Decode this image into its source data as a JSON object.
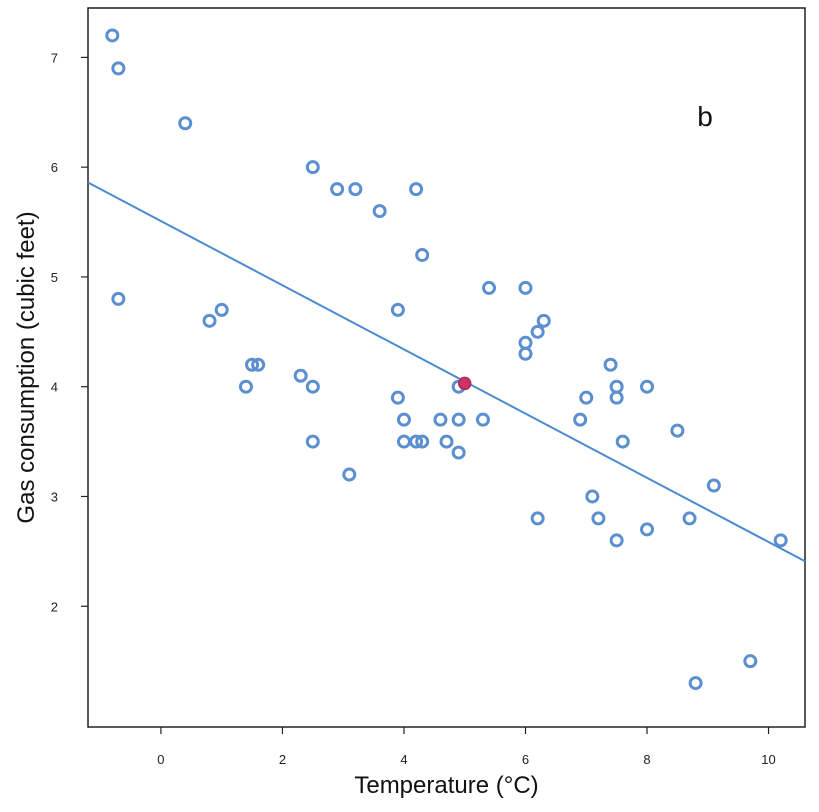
{
  "chart_data": {
    "type": "scatter",
    "title": "",
    "annotation": "b",
    "xlabel": "Temperature (°C)",
    "ylabel": "Gas consumption (cubic feet)",
    "xlim": [
      -1.2,
      10.6
    ],
    "ylim": [
      0.9,
      7.45
    ],
    "xticks": [
      0,
      2,
      4,
      6,
      8,
      10
    ],
    "yticks": [
      2,
      3,
      4,
      5,
      6,
      7
    ],
    "grid": false,
    "legend": "none",
    "point_color": "#5b8fd0",
    "line_color": "#4a8bd0",
    "highlight_color": "#cc3366",
    "points": [
      {
        "x": -0.8,
        "y": 7.2
      },
      {
        "x": -0.7,
        "y": 6.9
      },
      {
        "x": 0.4,
        "y": 6.4
      },
      {
        "x": -0.7,
        "y": 4.8
      },
      {
        "x": 0.8,
        "y": 4.6
      },
      {
        "x": 1.0,
        "y": 4.7
      },
      {
        "x": 1.4,
        "y": 4.0
      },
      {
        "x": 1.5,
        "y": 4.2
      },
      {
        "x": 1.6,
        "y": 4.2
      },
      {
        "x": 2.3,
        "y": 4.1
      },
      {
        "x": 2.5,
        "y": 4.0
      },
      {
        "x": 2.5,
        "y": 3.5
      },
      {
        "x": 2.5,
        "y": 6.0
      },
      {
        "x": 2.9,
        "y": 5.8
      },
      {
        "x": 3.2,
        "y": 5.8
      },
      {
        "x": 3.1,
        "y": 3.2
      },
      {
        "x": 3.6,
        "y": 5.6
      },
      {
        "x": 3.9,
        "y": 4.7
      },
      {
        "x": 3.9,
        "y": 3.9
      },
      {
        "x": 4.0,
        "y": 3.7
      },
      {
        "x": 4.0,
        "y": 3.5
      },
      {
        "x": 4.2,
        "y": 3.5
      },
      {
        "x": 4.2,
        "y": 5.8
      },
      {
        "x": 4.3,
        "y": 5.2
      },
      {
        "x": 4.3,
        "y": 3.5
      },
      {
        "x": 4.6,
        "y": 3.7
      },
      {
        "x": 4.7,
        "y": 3.5
      },
      {
        "x": 4.9,
        "y": 3.7
      },
      {
        "x": 4.9,
        "y": 3.4
      },
      {
        "x": 4.9,
        "y": 4.0
      },
      {
        "x": 5.3,
        "y": 3.7
      },
      {
        "x": 5.4,
        "y": 4.9
      },
      {
        "x": 6.0,
        "y": 4.9
      },
      {
        "x": 6.0,
        "y": 4.4
      },
      {
        "x": 6.0,
        "y": 4.3
      },
      {
        "x": 6.2,
        "y": 4.5
      },
      {
        "x": 6.3,
        "y": 4.6
      },
      {
        "x": 6.2,
        "y": 2.8
      },
      {
        "x": 6.9,
        "y": 3.7
      },
      {
        "x": 7.0,
        "y": 3.9
      },
      {
        "x": 7.1,
        "y": 3.0
      },
      {
        "x": 7.2,
        "y": 2.8
      },
      {
        "x": 7.4,
        "y": 4.2
      },
      {
        "x": 7.5,
        "y": 4.0
      },
      {
        "x": 7.5,
        "y": 3.9
      },
      {
        "x": 7.5,
        "y": 2.6
      },
      {
        "x": 7.6,
        "y": 3.5
      },
      {
        "x": 8.0,
        "y": 4.0
      },
      {
        "x": 8.0,
        "y": 2.7
      },
      {
        "x": 8.5,
        "y": 3.6
      },
      {
        "x": 8.7,
        "y": 2.8
      },
      {
        "x": 8.8,
        "y": 1.3
      },
      {
        "x": 9.1,
        "y": 3.1
      },
      {
        "x": 9.7,
        "y": 1.5
      },
      {
        "x": 10.2,
        "y": 2.6
      }
    ],
    "highlight_point": {
      "x": 5.0,
      "y": 4.03
    },
    "fit_line": {
      "x1": -1.2,
      "y1": 5.86,
      "x2": 10.6,
      "y2": 2.41
    }
  }
}
